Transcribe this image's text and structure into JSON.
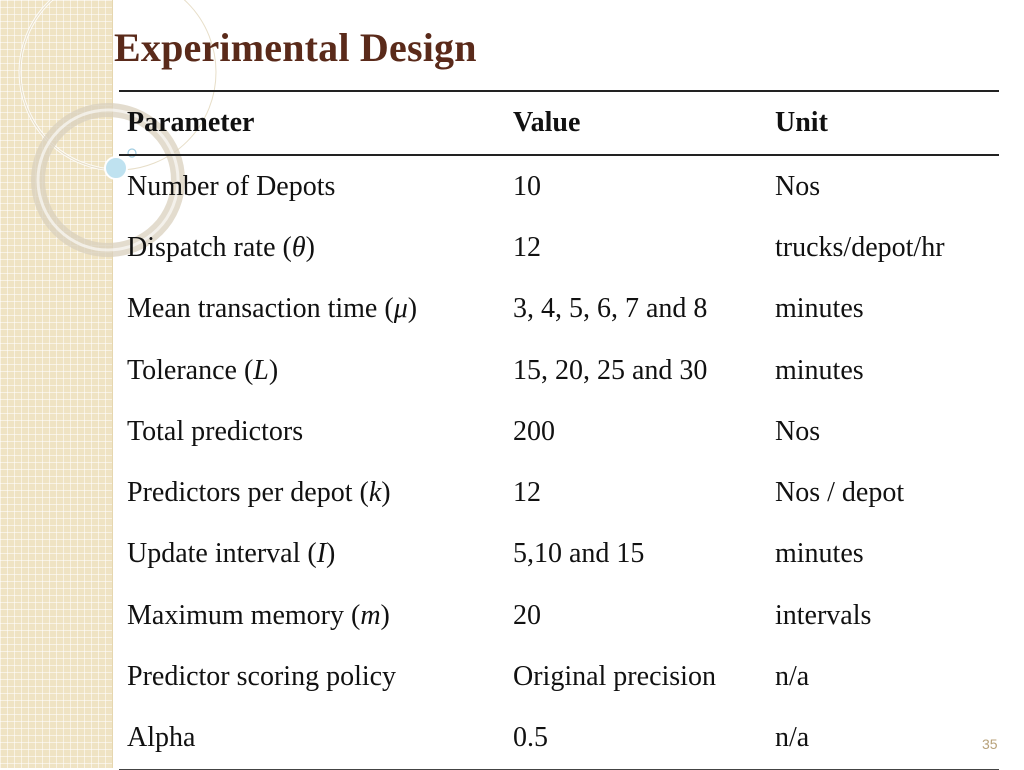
{
  "slide": {
    "title": "Experimental Design",
    "page_number": "35"
  },
  "table": {
    "headers": [
      "Parameter",
      "Value",
      "Unit"
    ],
    "rows": [
      {
        "label": "Number of Depots",
        "var": "",
        "value": "10",
        "unit": "Nos"
      },
      {
        "label": "Dispatch rate",
        "var": "θ",
        "value": "12",
        "unit": "trucks/depot/hr"
      },
      {
        "label": "Mean transaction time",
        "var": "μ",
        "value": "3, 4, 5, 6, 7 and 8",
        "unit": "minutes"
      },
      {
        "label": "Tolerance",
        "var": "L",
        "value": "15, 20, 25 and 30",
        "unit": "minutes"
      },
      {
        "label": "Total predictors",
        "var": "",
        "value": "200",
        "unit": "Nos"
      },
      {
        "label": "Predictors per depot",
        "var": "k",
        "value": "12",
        "unit": "Nos / depot"
      },
      {
        "label": "Update interval",
        "var": "I",
        "value": "5,10 and 15",
        "unit": "minutes"
      },
      {
        "label": "Maximum memory",
        "var": "m",
        "value": "20",
        "unit": "intervals"
      },
      {
        "label": "Predictor scoring policy",
        "var": "",
        "value": "Original precision",
        "unit": "n/a"
      },
      {
        "label": "Alpha",
        "var": "",
        "value": "0.5",
        "unit": "n/a"
      }
    ]
  }
}
